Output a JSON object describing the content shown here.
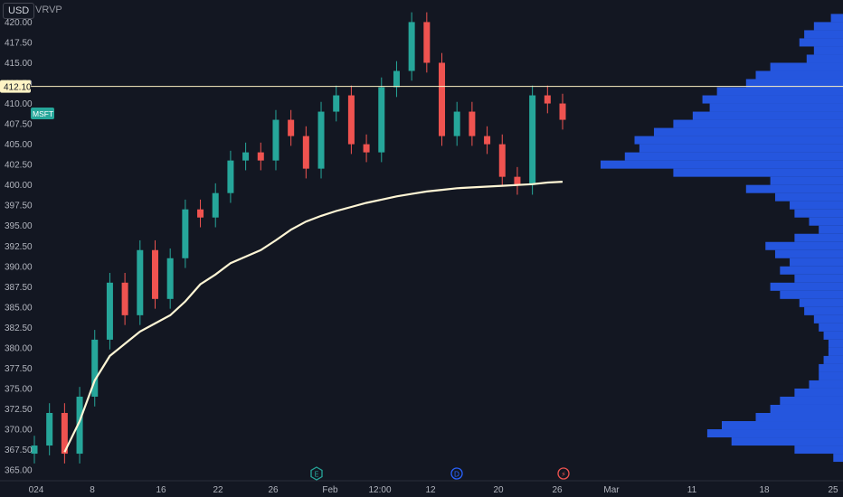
{
  "header": {
    "currency_label": "USD",
    "indicator_label": "VRVP"
  },
  "symbol": {
    "ticker": "MSFT",
    "color": "#26a69a"
  },
  "colors": {
    "background": "#131722",
    "up_candle": "#26a69a",
    "down_candle": "#ef5350",
    "vwap_line": "#fff6d5",
    "volume_profile": "#2962ff",
    "horizontal_line": "#fff3c4"
  },
  "events": [
    {
      "name": "earnings",
      "glyph": "E",
      "x_label_near": "Feb",
      "color": "#26a69a"
    },
    {
      "name": "dividend",
      "glyph": "D",
      "x_label_near": "20",
      "color": "#2962ff"
    },
    {
      "name": "split-or-news",
      "glyph": "⚡",
      "x_label_near": "26",
      "color": "#ef5350"
    }
  ],
  "chart_data": {
    "type": "candlestick",
    "title": "",
    "y_axis": {
      "ticks": [
        "420.00",
        "417.50",
        "415.00",
        "412.50",
        "410.00",
        "407.50",
        "405.00",
        "402.50",
        "400.00",
        "397.50",
        "395.00",
        "392.50",
        "390.00",
        "387.50",
        "385.00",
        "382.50",
        "380.00",
        "377.50",
        "375.00",
        "372.50",
        "370.00",
        "367.50",
        "365.00"
      ],
      "ylim": [
        363.9,
        421.6
      ],
      "highlighted_price": "412.10"
    },
    "x_axis": {
      "ticks": [
        "024",
        "8",
        "16",
        "22",
        "26",
        "Feb",
        "12:00",
        "12",
        "20",
        "26",
        "Mar",
        "11",
        "18",
        "25"
      ]
    },
    "horizontal_line_price": 412.1,
    "price_series": [
      {
        "date": "2024-01-04",
        "close": 368
      },
      {
        "date": "2024-01-05",
        "close": 372
      },
      {
        "date": "2024-01-08",
        "close": 367
      },
      {
        "date": "2024-01-09",
        "close": 374
      },
      {
        "date": "2024-01-10",
        "close": 381
      },
      {
        "date": "2024-01-11",
        "close": 388
      },
      {
        "date": "2024-01-12",
        "close": 384
      },
      {
        "date": "2024-01-16",
        "close": 392
      },
      {
        "date": "2024-01-17",
        "close": 386
      },
      {
        "date": "2024-01-18",
        "close": 391
      },
      {
        "date": "2024-01-19",
        "close": 397
      },
      {
        "date": "2024-01-22",
        "close": 396
      },
      {
        "date": "2024-01-23",
        "close": 399
      },
      {
        "date": "2024-01-24",
        "close": 403
      },
      {
        "date": "2024-01-25",
        "close": 404
      },
      {
        "date": "2024-01-26",
        "close": 403
      },
      {
        "date": "2024-01-29",
        "close": 408
      },
      {
        "date": "2024-01-30",
        "close": 406
      },
      {
        "date": "2024-01-31",
        "close": 402
      },
      {
        "date": "2024-02-01",
        "close": 409
      },
      {
        "date": "2024-02-02",
        "close": 411
      },
      {
        "date": "2024-02-05",
        "close": 405
      },
      {
        "date": "2024-02-06",
        "close": 404
      },
      {
        "date": "2024-02-07",
        "close": 412
      },
      {
        "date": "2024-02-08",
        "close": 414
      },
      {
        "date": "2024-02-09",
        "close": 420
      },
      {
        "date": "2024-02-12",
        "close": 415
      },
      {
        "date": "2024-02-13",
        "close": 406
      },
      {
        "date": "2024-02-14",
        "close": 409
      },
      {
        "date": "2024-02-15",
        "close": 406
      },
      {
        "date": "2024-02-16",
        "close": 405
      },
      {
        "date": "2024-02-20",
        "close": 401
      },
      {
        "date": "2024-02-21",
        "close": 400
      },
      {
        "date": "2024-02-22",
        "close": 411
      },
      {
        "date": "2024-02-23",
        "close": 410
      },
      {
        "date": "2024-02-26",
        "close": 408
      }
    ],
    "vwap_series": [
      {
        "date": "2024-01-08",
        "value": 367.2
      },
      {
        "date": "2024-01-09",
        "value": 371.0
      },
      {
        "date": "2024-01-10",
        "value": 376.0
      },
      {
        "date": "2024-01-11",
        "value": 379.0
      },
      {
        "date": "2024-01-12",
        "value": 380.5
      },
      {
        "date": "2024-01-16",
        "value": 382.0
      },
      {
        "date": "2024-01-17",
        "value": 383.0
      },
      {
        "date": "2024-01-18",
        "value": 384.0
      },
      {
        "date": "2024-01-19",
        "value": 385.7
      },
      {
        "date": "2024-01-22",
        "value": 387.8
      },
      {
        "date": "2024-01-23",
        "value": 389.0
      },
      {
        "date": "2024-01-24",
        "value": 390.4
      },
      {
        "date": "2024-01-25",
        "value": 391.2
      },
      {
        "date": "2024-01-26",
        "value": 392.0
      },
      {
        "date": "2024-01-29",
        "value": 393.2
      },
      {
        "date": "2024-01-30",
        "value": 394.5
      },
      {
        "date": "2024-01-31",
        "value": 395.5
      },
      {
        "date": "2024-02-01",
        "value": 396.2
      },
      {
        "date": "2024-02-02",
        "value": 396.8
      },
      {
        "date": "2024-02-05",
        "value": 397.3
      },
      {
        "date": "2024-02-06",
        "value": 397.8
      },
      {
        "date": "2024-02-07",
        "value": 398.2
      },
      {
        "date": "2024-02-08",
        "value": 398.6
      },
      {
        "date": "2024-02-09",
        "value": 398.9
      },
      {
        "date": "2024-02-12",
        "value": 399.2
      },
      {
        "date": "2024-02-13",
        "value": 399.4
      },
      {
        "date": "2024-02-14",
        "value": 399.6
      },
      {
        "date": "2024-02-15",
        "value": 399.7
      },
      {
        "date": "2024-02-16",
        "value": 399.8
      },
      {
        "date": "2024-02-20",
        "value": 399.9
      },
      {
        "date": "2024-02-21",
        "value": 400.0
      },
      {
        "date": "2024-02-22",
        "value": 400.1
      },
      {
        "date": "2024-02-23",
        "value": 400.3
      },
      {
        "date": "2024-02-26",
        "value": 400.4
      }
    ],
    "volume_profile": [
      {
        "price": 420.5,
        "volume": 0.05
      },
      {
        "price": 419.5,
        "volume": 0.12
      },
      {
        "price": 418.5,
        "volume": 0.16
      },
      {
        "price": 417.5,
        "volume": 0.18
      },
      {
        "price": 416.5,
        "volume": 0.12
      },
      {
        "price": 415.5,
        "volume": 0.15
      },
      {
        "price": 414.5,
        "volume": 0.3
      },
      {
        "price": 413.5,
        "volume": 0.36
      },
      {
        "price": 412.5,
        "volume": 0.4
      },
      {
        "price": 411.5,
        "volume": 0.52
      },
      {
        "price": 410.5,
        "volume": 0.58
      },
      {
        "price": 409.5,
        "volume": 0.55
      },
      {
        "price": 408.5,
        "volume": 0.62
      },
      {
        "price": 407.5,
        "volume": 0.7
      },
      {
        "price": 406.5,
        "volume": 0.78
      },
      {
        "price": 405.5,
        "volume": 0.86
      },
      {
        "price": 404.5,
        "volume": 0.84
      },
      {
        "price": 403.5,
        "volume": 0.9
      },
      {
        "price": 402.5,
        "volume": 1.0
      },
      {
        "price": 401.5,
        "volume": 0.7
      },
      {
        "price": 400.5,
        "volume": 0.3
      },
      {
        "price": 399.5,
        "volume": 0.4
      },
      {
        "price": 398.5,
        "volume": 0.28
      },
      {
        "price": 397.5,
        "volume": 0.22
      },
      {
        "price": 396.5,
        "volume": 0.2
      },
      {
        "price": 395.5,
        "volume": 0.14
      },
      {
        "price": 394.5,
        "volume": 0.1
      },
      {
        "price": 393.5,
        "volume": 0.2
      },
      {
        "price": 392.5,
        "volume": 0.32
      },
      {
        "price": 391.5,
        "volume": 0.28
      },
      {
        "price": 390.5,
        "volume": 0.22
      },
      {
        "price": 389.5,
        "volume": 0.26
      },
      {
        "price": 388.5,
        "volume": 0.2
      },
      {
        "price": 387.5,
        "volume": 0.3
      },
      {
        "price": 386.5,
        "volume": 0.26
      },
      {
        "price": 385.5,
        "volume": 0.18
      },
      {
        "price": 384.5,
        "volume": 0.16
      },
      {
        "price": 383.5,
        "volume": 0.12
      },
      {
        "price": 382.5,
        "volume": 0.1
      },
      {
        "price": 381.5,
        "volume": 0.08
      },
      {
        "price": 380.5,
        "volume": 0.06
      },
      {
        "price": 379.5,
        "volume": 0.06
      },
      {
        "price": 378.5,
        "volume": 0.08
      },
      {
        "price": 377.5,
        "volume": 0.1
      },
      {
        "price": 376.5,
        "volume": 0.1
      },
      {
        "price": 375.5,
        "volume": 0.14
      },
      {
        "price": 374.5,
        "volume": 0.2
      },
      {
        "price": 373.5,
        "volume": 0.26
      },
      {
        "price": 372.5,
        "volume": 0.3
      },
      {
        "price": 371.5,
        "volume": 0.36
      },
      {
        "price": 370.5,
        "volume": 0.5
      },
      {
        "price": 369.5,
        "volume": 0.56
      },
      {
        "price": 368.5,
        "volume": 0.46
      },
      {
        "price": 367.5,
        "volume": 0.2
      },
      {
        "price": 366.5,
        "volume": 0.04
      }
    ],
    "grid": false,
    "legend": "none"
  }
}
